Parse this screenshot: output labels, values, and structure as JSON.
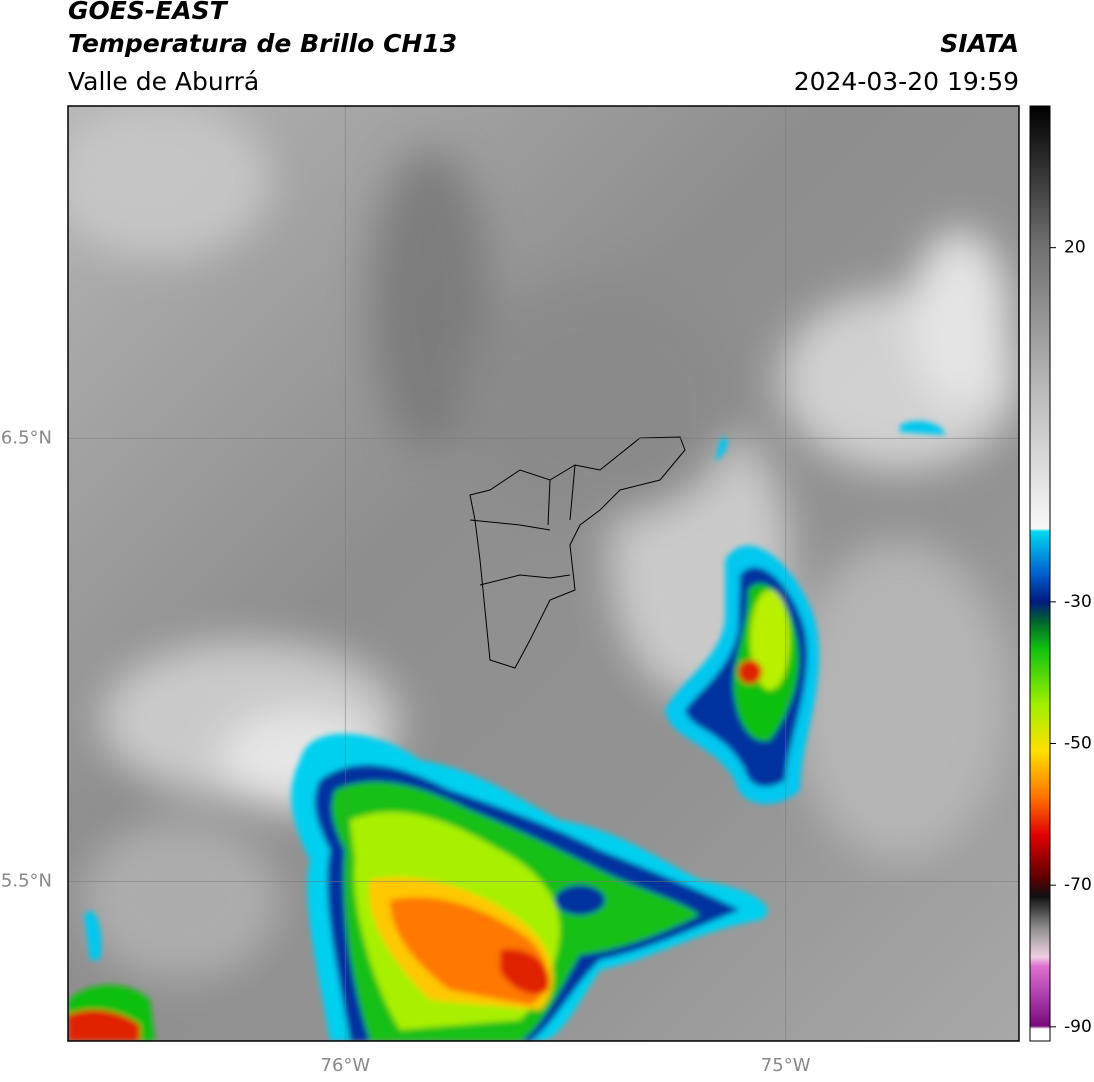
{
  "header": {
    "title": "GOES-EAST",
    "subtitle": "Temperatura de Brillo CH13",
    "region": "Valle de Aburrá",
    "source": "SIATA",
    "datetime": "2024-03-20 19:59"
  },
  "map": {
    "lon_range": [
      -76.63,
      -74.47
    ],
    "lat_range": [
      5.14,
      7.25
    ],
    "lon_ticks": [
      {
        "value": -76,
        "label": "76°W"
      },
      {
        "value": -75,
        "label": "75°W"
      }
    ],
    "lat_ticks": [
      {
        "value": 6.5,
        "label": "6.5°N"
      },
      {
        "value": 5.5,
        "label": "5.5°N"
      }
    ]
  },
  "colorbar": {
    "range": [
      -92,
      40
    ],
    "ticks": [
      20,
      -30,
      -50,
      -70,
      -90
    ]
  }
}
